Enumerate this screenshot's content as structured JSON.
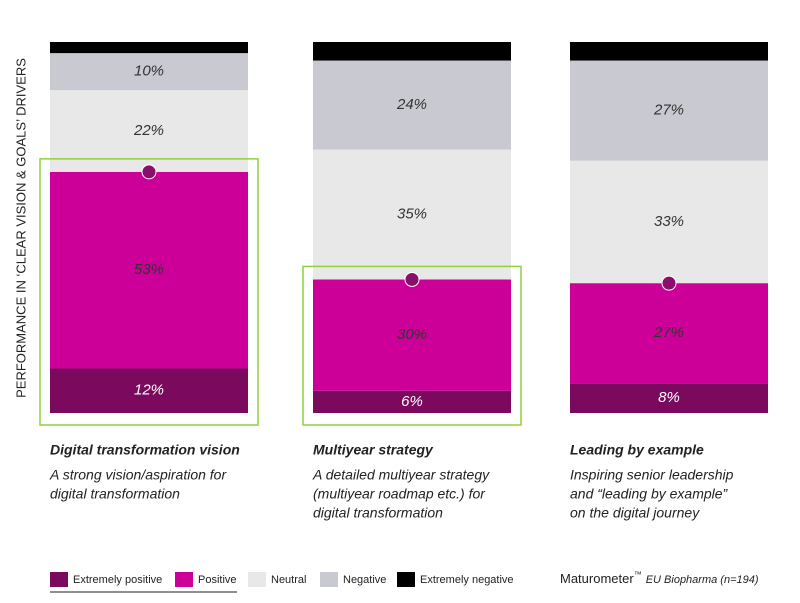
{
  "chart_data": {
    "type": "stacked-bar",
    "y_label": "PERFORMANCE IN ‘CLEAR VISION & GOALS’ DRIVERS",
    "categories": [
      "Digital transformation vision",
      "Multiyear strategy",
      "Leading by example"
    ],
    "descriptions": [
      [
        "A strong vision/aspiration for",
        "digital transformation"
      ],
      [
        "A detailed multiyear strategy",
        "(multiyear roadmap etc.) for",
        "digital transformation"
      ],
      [
        "Inspiring senior leadership",
        "and “leading by example”",
        "on the digital journey"
      ]
    ],
    "series": [
      {
        "name": "Extremely positive",
        "color": "#7b0a5f",
        "label_color": "#ffffff",
        "values": [
          12,
          6,
          8
        ],
        "value_labels": [
          "12%",
          "6%",
          "8%"
        ]
      },
      {
        "name": "Positive",
        "color": "#cc0099",
        "label_color": "#333333",
        "values": [
          53,
          30,
          27
        ],
        "value_labels": [
          "53%",
          "30%",
          "27%"
        ]
      },
      {
        "name": "Neutral",
        "color": "#e8e8e8",
        "label_color": "#333333",
        "values": [
          22,
          35,
          33
        ],
        "value_labels": [
          "22%",
          "35%",
          "33%"
        ]
      },
      {
        "name": "Negative",
        "color": "#c9c9d1",
        "label_color": "#333333",
        "values": [
          10,
          24,
          27
        ],
        "value_labels": [
          "10%",
          "24%",
          "27%"
        ]
      },
      {
        "name": "Extremely negative",
        "color": "#000000",
        "label_color": "#ffffff",
        "values": [
          3,
          5,
          5
        ],
        "value_labels": [
          null,
          null,
          null
        ]
      }
    ],
    "highlight_color": "#8fd13f",
    "marker_color": "#8a0f6b",
    "source": {
      "brand": "Maturometer",
      "mark": "™",
      "note": "EU Biopharma (n=194)"
    }
  }
}
